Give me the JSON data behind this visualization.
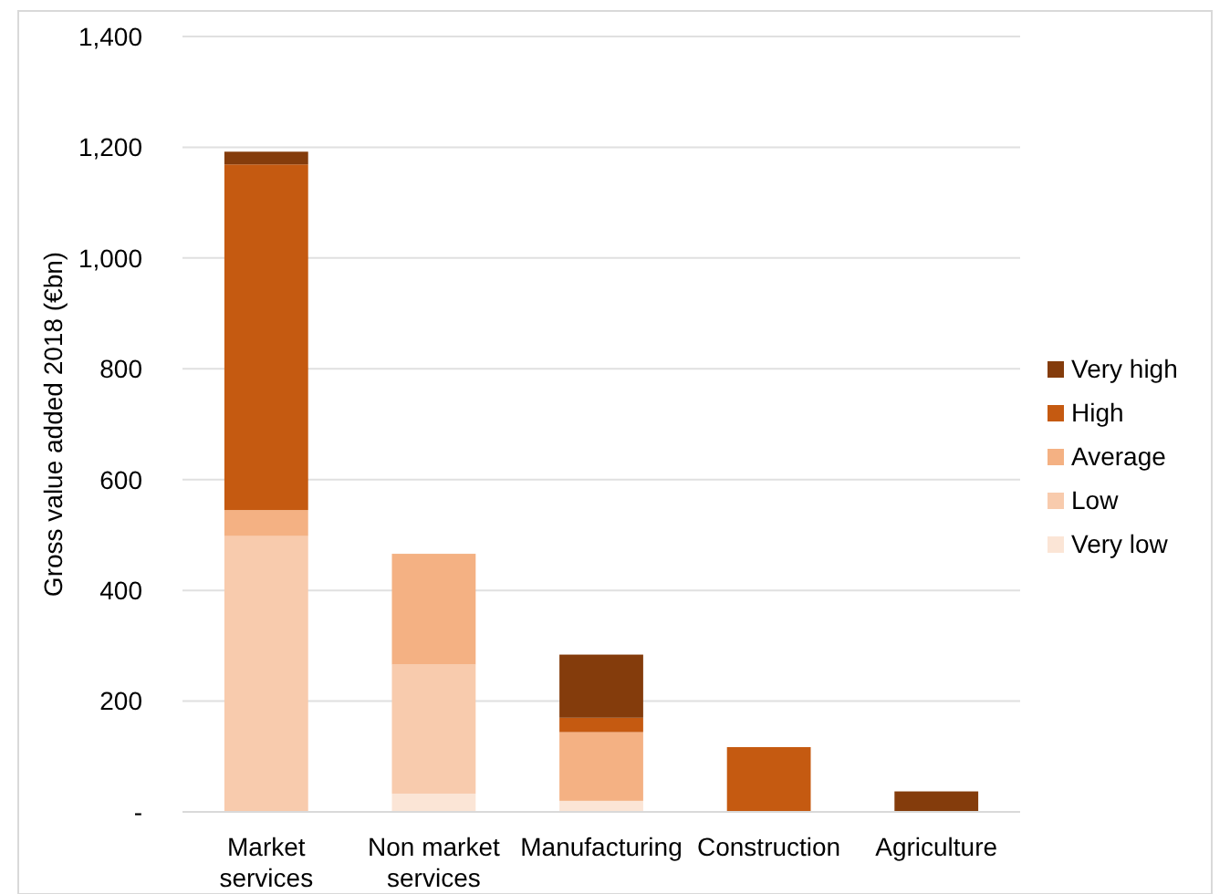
{
  "chart_data": {
    "type": "bar",
    "stacked": true,
    "ylabel": "Gross value added 2018 (€bn)",
    "categories": [
      "Market services",
      "Non market services",
      "Manufacturing",
      "Construction",
      "Agriculture"
    ],
    "series": [
      {
        "name": "Very low",
        "color": "#fbe5d6",
        "values": [
          0,
          33,
          20,
          0,
          0
        ]
      },
      {
        "name": "Low",
        "color": "#f8cbad",
        "values": [
          498,
          233,
          0,
          0,
          0
        ]
      },
      {
        "name": "Average",
        "color": "#f4b183",
        "values": [
          47,
          200,
          124,
          0,
          0
        ]
      },
      {
        "name": "High",
        "color": "#c55a11",
        "values": [
          624,
          0,
          26,
          117,
          0
        ]
      },
      {
        "name": "Very high",
        "color": "#843c0c",
        "values": [
          23,
          0,
          114,
          0,
          37
        ]
      }
    ],
    "ylim": [
      0,
      1400
    ],
    "yticks": [
      {
        "value": 0,
        "label": "-"
      },
      {
        "value": 200,
        "label": "200"
      },
      {
        "value": 400,
        "label": "400"
      },
      {
        "value": 600,
        "label": "600"
      },
      {
        "value": 800,
        "label": "800"
      },
      {
        "value": 1000,
        "label": "1,000"
      },
      {
        "value": 1200,
        "label": "1,200"
      },
      {
        "value": 1400,
        "label": "1,400"
      }
    ],
    "grid": "y",
    "legend": "right"
  }
}
